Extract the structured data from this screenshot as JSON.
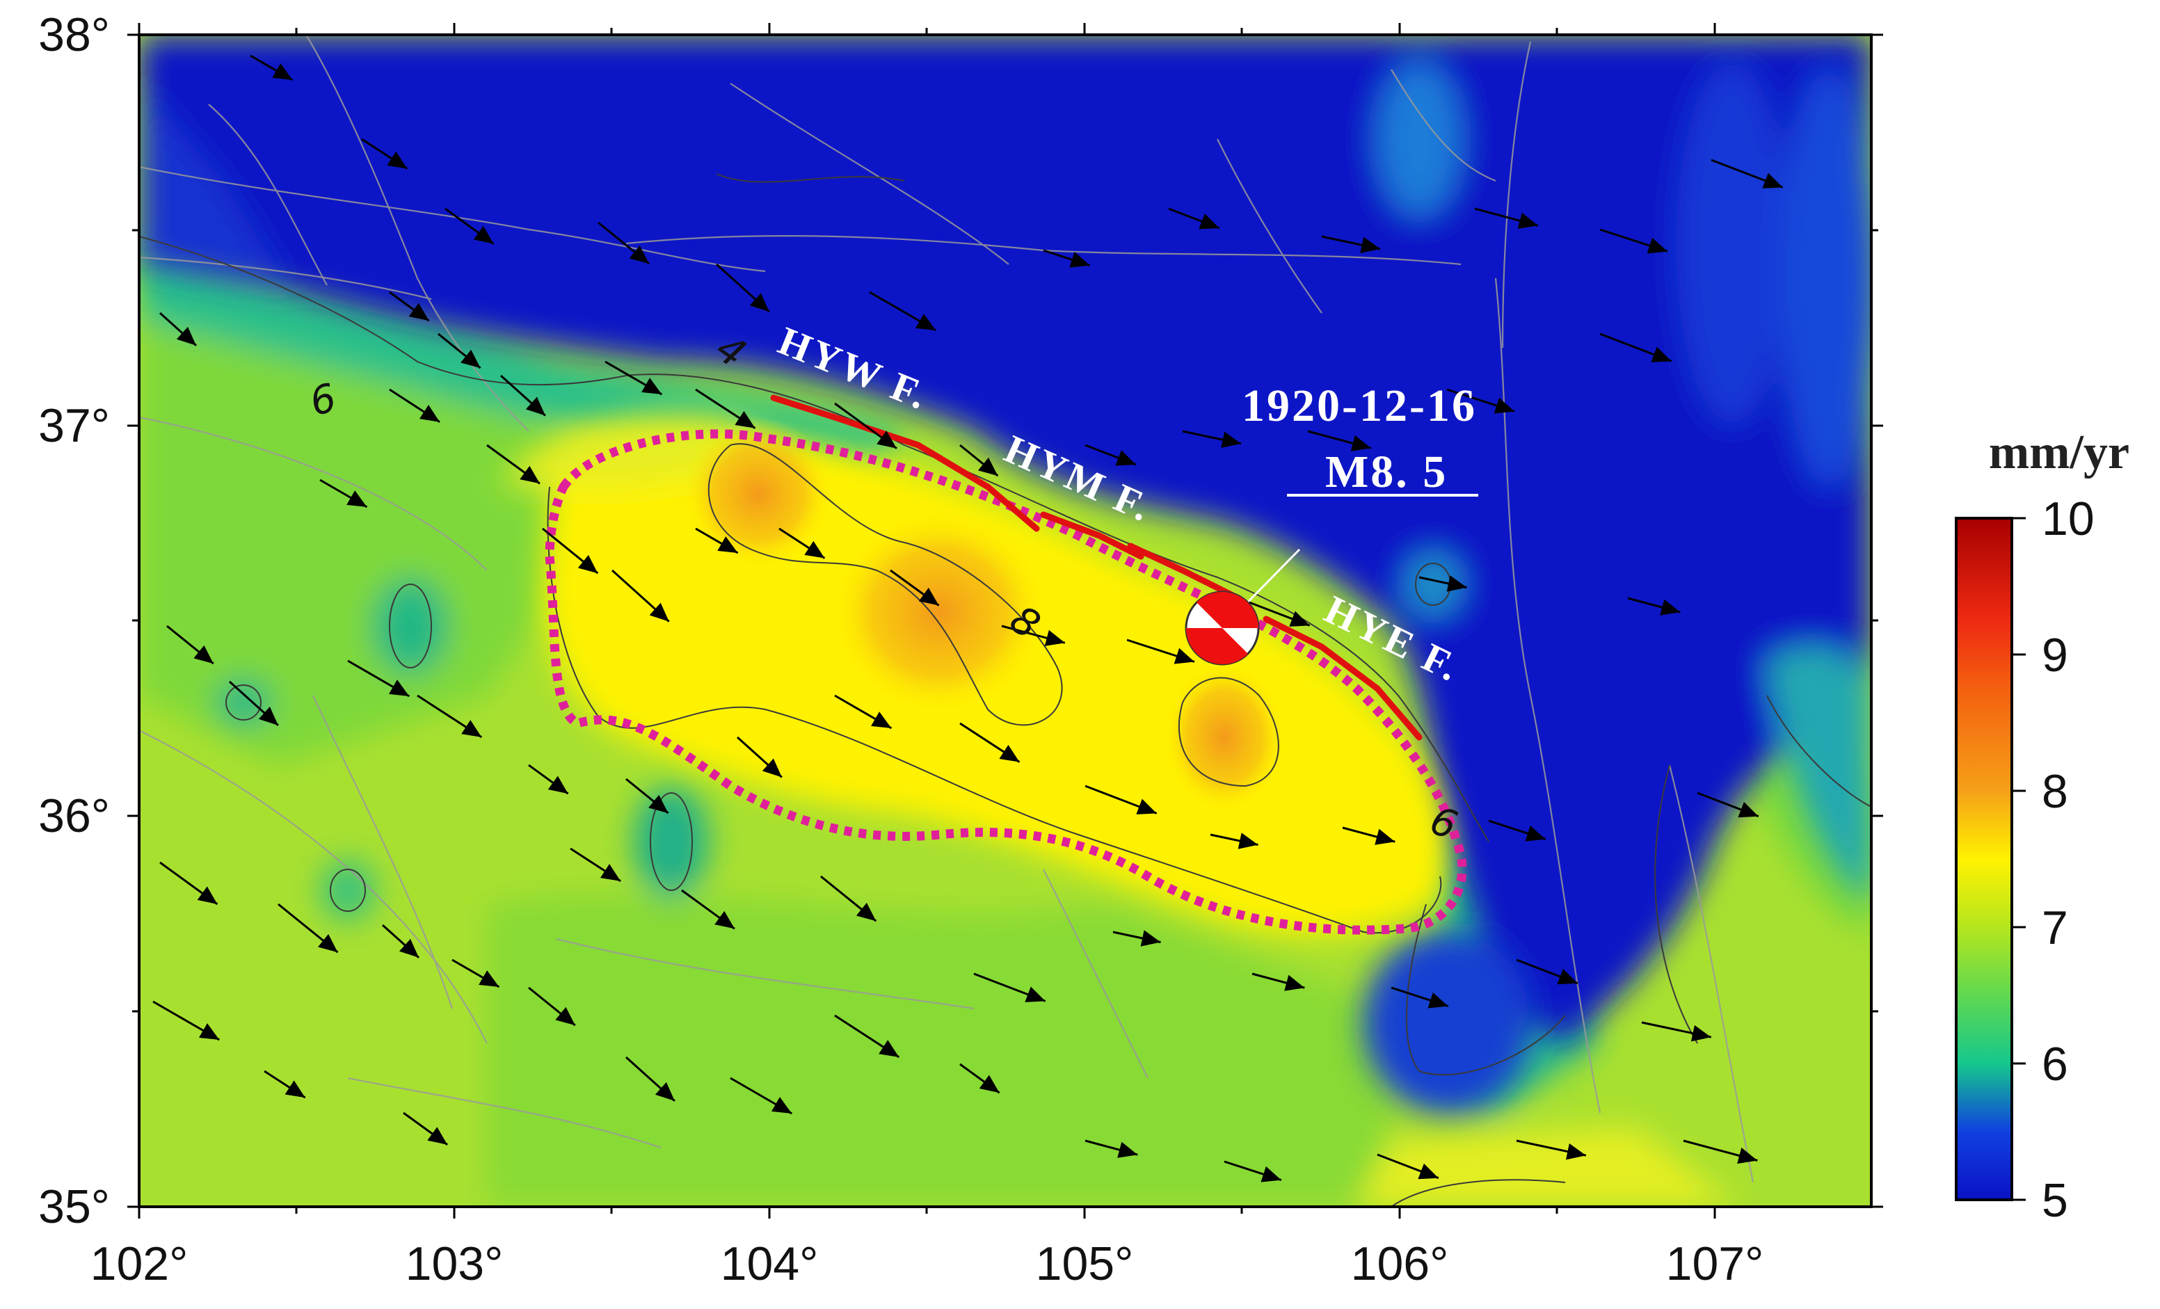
{
  "map": {
    "longitude_ticks": [
      "102°",
      "103°",
      "104°",
      "105°",
      "106°",
      "107°"
    ],
    "latitude_ticks": [
      "35°",
      "36°",
      "37°",
      "38°"
    ],
    "lon_range": [
      102,
      107.5
    ],
    "lat_range": [
      35,
      38
    ]
  },
  "faults": [
    {
      "label": "HYW F."
    },
    {
      "label": "HYM F."
    },
    {
      "label": "HYE F."
    }
  ],
  "earthquake": {
    "date": "1920-12-16",
    "magnitude": "M8. 5",
    "lon": 105.45,
    "lat": 36.5
  },
  "contours": {
    "labels": [
      "4",
      "6",
      "8",
      "6"
    ]
  },
  "colorbar": {
    "unit": "mm/yr",
    "ticks": [
      "10",
      "9",
      "8",
      "7",
      "6",
      "5"
    ],
    "range": [
      5,
      10
    ],
    "colors": {
      "v5": "#0a12c6",
      "v6": "#14c88c",
      "v7": "#b4e61e",
      "v75": "#fff200",
      "v8": "#f5a018",
      "v9": "#ee2a12",
      "v10": "#a80000"
    }
  },
  "colors": {
    "fault": "#e01010",
    "region_outline": "#e0209a",
    "vector": "#000000",
    "text_on_map": "#ffffff"
  }
}
